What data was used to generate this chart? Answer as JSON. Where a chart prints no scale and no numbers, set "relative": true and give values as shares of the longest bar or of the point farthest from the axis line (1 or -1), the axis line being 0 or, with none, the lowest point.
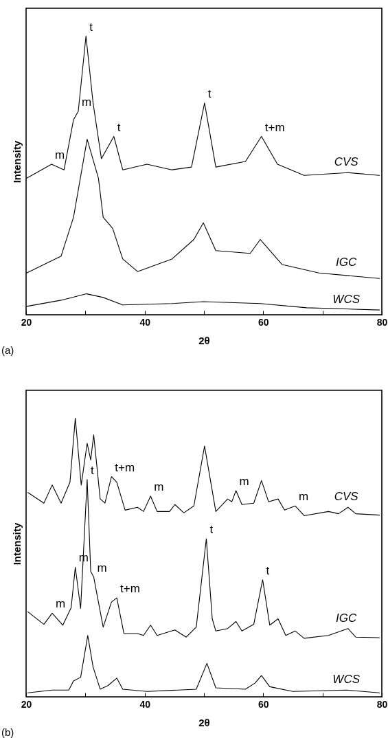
{
  "chart_data": [
    {
      "type": "line",
      "relative": true,
      "xlabel": "2θ",
      "ylabel": "Intensity",
      "tick_labels": "x",
      "xlim": [
        20,
        80
      ],
      "xticks": [
        20,
        {
          "value": 30,
          "label": null
        },
        40,
        {
          "value": 50,
          "label": null
        },
        60,
        {
          "value": 70,
          "label": null
        },
        80
      ],
      "series": [
        {
          "name": "CVS",
          "color": "#000000",
          "x": [
            20.1,
            24.3,
            26.4,
            28,
            28.8,
            30.1,
            31.3,
            32.7,
            34.8,
            36.3,
            40.4,
            44.6,
            47.9,
            50.1,
            52,
            57,
            59.7,
            62.4,
            66.9,
            74.3,
            79.6
          ],
          "values": [
            0.49,
            0.54,
            0.52,
            0.7,
            0.73,
            1.0,
            0.76,
            0.56,
            0.64,
            0.52,
            0.54,
            0.52,
            0.53,
            0.76,
            0.53,
            0.55,
            0.64,
            0.54,
            0.5,
            0.51,
            0.5
          ]
        },
        {
          "name": "IGC",
          "color": "#000000",
          "x": [
            20.1,
            25.9,
            28,
            30.3,
            32.2,
            33,
            34.6,
            36.3,
            38.8,
            44.6,
            48.3,
            49.9,
            52,
            57.8,
            59.5,
            63.2,
            69.4,
            79.6
          ],
          "values": [
            0.15,
            0.21,
            0.35,
            0.63,
            0.49,
            0.35,
            0.31,
            0.2,
            0.155,
            0.2,
            0.27,
            0.33,
            0.23,
            0.22,
            0.27,
            0.18,
            0.15,
            0.13
          ]
        },
        {
          "name": "WCS",
          "color": "#000000",
          "x": [
            20.1,
            25.9,
            30.2,
            33,
            36.3,
            44.6,
            49.9,
            59.5,
            67.3,
            79.6
          ],
          "values": [
            0.03,
            0.052,
            0.075,
            0.062,
            0.035,
            0.04,
            0.047,
            0.04,
            0.025,
            0.017
          ]
        }
      ],
      "annotations": [
        "(a)",
        {
          "text": "m",
          "x": 24.3,
          "y": 0.54
        },
        {
          "text": "m",
          "x": 28.8,
          "y": 0.73
        },
        {
          "text": "t",
          "x": 30.1,
          "y": 1.0
        },
        {
          "text": "t",
          "x": 34.8,
          "y": 0.64
        },
        {
          "text": "t",
          "x": 50.1,
          "y": 0.76
        },
        {
          "text": "t+m",
          "x": 59.7,
          "y": 0.64
        }
      ]
    },
    {
      "type": "line",
      "relative": true,
      "xlabel": "2θ",
      "ylabel": "Intensity",
      "tick_labels": "x",
      "xlim": [
        20,
        80
      ],
      "xticks": [
        20,
        {
          "value": 30,
          "label": null
        },
        40,
        {
          "value": 50,
          "label": null
        },
        60,
        {
          "value": 70,
          "label": null
        },
        80
      ],
      "series": [
        {
          "name": "CVS",
          "color": "#000000",
          "x": [
            20.3,
            23,
            24.4,
            25.9,
            27.4,
            28.3,
            29.3,
            30.3,
            30.9,
            31.4,
            32.5,
            33.3,
            34.4,
            35.3,
            36.7,
            38.8,
            39.8,
            41,
            42.1,
            44.2,
            45.1,
            46.6,
            48.3,
            50.1,
            52,
            54,
            54.7,
            55.4,
            56.4,
            58.4,
            59.7,
            60.9,
            62.5,
            63.6,
            65.4,
            66.9,
            71,
            72.7,
            74.3,
            75.6,
            79.6
          ],
          "values": [
            0.733,
            0.695,
            0.76,
            0.695,
            0.77,
            1.0,
            0.76,
            0.91,
            0.85,
            0.94,
            0.71,
            0.695,
            0.79,
            0.77,
            0.67,
            0.68,
            0.665,
            0.72,
            0.665,
            0.665,
            0.69,
            0.66,
            0.685,
            0.9,
            0.665,
            0.71,
            0.7,
            0.74,
            0.69,
            0.695,
            0.776,
            0.7,
            0.71,
            0.67,
            0.685,
            0.65,
            0.665,
            0.657,
            0.68,
            0.657,
            0.652
          ]
        },
        {
          "name": "IGC",
          "color": "#000000",
          "x": [
            20.3,
            23,
            24.4,
            26.2,
            27.6,
            28.3,
            29.2,
            30.3,
            30.9,
            31.4,
            33,
            34.4,
            35.3,
            36.5,
            38.8,
            39.8,
            41,
            42.1,
            45.1,
            47,
            48.7,
            50.4,
            51.4,
            52,
            54,
            55.4,
            56.4,
            58.4,
            59.9,
            61.1,
            62.5,
            63.8,
            65.4,
            66.9,
            71,
            74.3,
            75.6,
            79.6
          ],
          "values": [
            0.305,
            0.26,
            0.3,
            0.257,
            0.32,
            0.465,
            0.317,
            0.78,
            0.45,
            0.43,
            0.25,
            0.34,
            0.355,
            0.227,
            0.227,
            0.22,
            0.257,
            0.22,
            0.24,
            0.214,
            0.25,
            0.567,
            0.28,
            0.236,
            0.245,
            0.27,
            0.236,
            0.26,
            0.42,
            0.257,
            0.28,
            0.22,
            0.236,
            0.21,
            0.22,
            0.245,
            0.214,
            0.212
          ]
        },
        {
          "name": "WCS",
          "color": "#000000",
          "x": [
            20.3,
            24.4,
            27.2,
            28,
            29.2,
            30.4,
            31.3,
            32.5,
            33.8,
            35.3,
            36.3,
            40.4,
            48.7,
            50.5,
            52,
            57,
            58.6,
            59.7,
            61.1,
            65,
            74.1,
            79.6
          ],
          "values": [
            0.014,
            0.024,
            0.024,
            0.057,
            0.07,
            0.22,
            0.107,
            0.027,
            0.04,
            0.067,
            0.027,
            0.019,
            0.027,
            0.12,
            0.032,
            0.027,
            0.049,
            0.076,
            0.036,
            0.019,
            0.024,
            0.014
          ]
        }
      ],
      "annotations": [
        "(b)",
        {
          "text": "t+m",
          "x": 34.4,
          "y": 0.79
        },
        {
          "text": "m",
          "x": 41,
          "y": 0.72
        },
        {
          "text": "m",
          "x": 55.4,
          "y": 0.74
        },
        {
          "text": "m",
          "x": 65.4,
          "y": 0.685
        },
        {
          "text": "t",
          "x": 30.3,
          "y": 0.78
        },
        {
          "text": "m",
          "x": 28.3,
          "y": 0.465
        },
        {
          "text": "m",
          "x": 31.4,
          "y": 0.43
        },
        {
          "text": "t",
          "x": 50.4,
          "y": 0.567
        },
        {
          "text": "t",
          "x": 59.9,
          "y": 0.42
        },
        {
          "text": "m",
          "x": 24.4,
          "y": 0.3
        },
        {
          "text": "t+m",
          "x": 35.3,
          "y": 0.355
        }
      ]
    }
  ]
}
